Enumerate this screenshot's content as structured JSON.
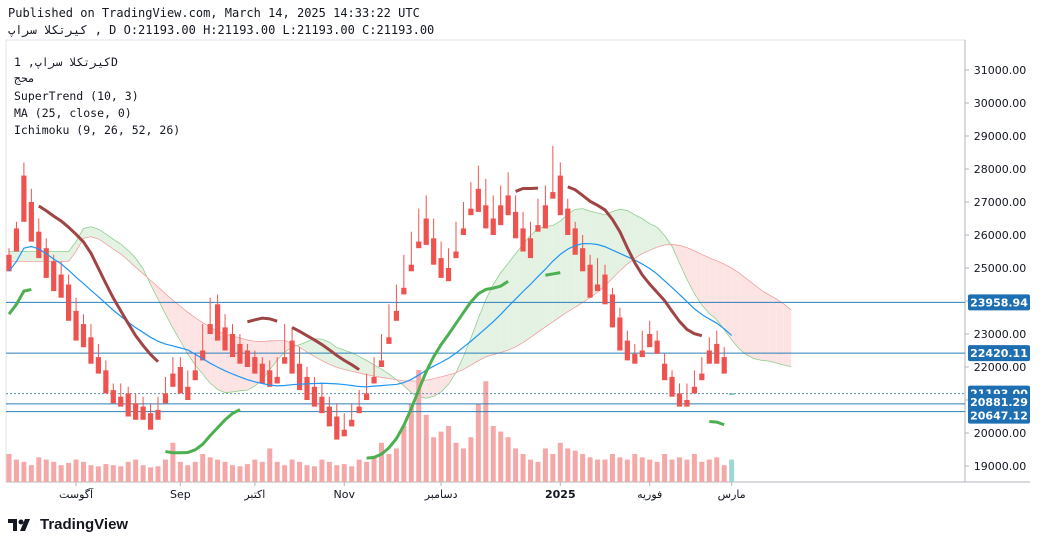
{
  "header": {
    "published": "Published on TradingView.com, March 14, 2025 14:33:22 UTC",
    "ohlc": "کیرتکلا سراپ , D O:21193.00 H:21193.00 L:21193.00 C:21193.00"
  },
  "legend": {
    "symbol": "کیرتکلا سراپ, 1D",
    "exchange": "محج",
    "ind1": "SuperTrend (10, 3)",
    "ind2": "MA (25, close, 0)",
    "ind3": "Ichimoku (9, 26, 52, 26)"
  },
  "brand": {
    "name": "TradingView"
  },
  "colors": {
    "up": "#26a69a",
    "down": "#ef5350",
    "supertrend_up": "#4caf50",
    "supertrend_down": "#a04545",
    "ma": "#2196f3",
    "cloud_bull": "#e3f2e3",
    "cloud_bear": "#fde4e4",
    "hline": "#2a7fb8",
    "label_bg": "#1e6fb2"
  },
  "chart_data": {
    "type": "candlestick",
    "y_axis": {
      "min": 18500,
      "max": 31500,
      "ticks": [
        19000,
        20000,
        21000,
        22000,
        23000,
        24000,
        25000,
        26000,
        27000,
        28000,
        29000,
        30000,
        31000
      ]
    },
    "x_ticks": [
      {
        "label": "آگوست",
        "index": 9
      },
      {
        "label": "Sep",
        "index": 23
      },
      {
        "label": "اکتبر",
        "index": 33
      },
      {
        "label": "Nov",
        "index": 45
      },
      {
        "label": "دسامبر",
        "index": 58
      },
      {
        "label": "2025",
        "index": 74
      },
      {
        "label": "فوریه",
        "index": 86
      },
      {
        "label": "مارس",
        "index": 97
      }
    ],
    "price_labels": [
      {
        "value": "23958.94",
        "y": 23958.94
      },
      {
        "value": "22420.11",
        "y": 22420.11
      },
      {
        "value": "21193.00",
        "y": 21193
      },
      {
        "value": "20881.29",
        "y": 20881.29
      },
      {
        "value": "20647.12",
        "y": 20647.12
      }
    ],
    "candles": [
      [
        25400,
        25600,
        25000,
        24900
      ],
      [
        26200,
        26400,
        25800,
        25500
      ],
      [
        27800,
        28200,
        27000,
        26400
      ],
      [
        27000,
        27400,
        26200,
        25800
      ],
      [
        26100,
        26500,
        25500,
        25300
      ],
      [
        25600,
        25900,
        24900,
        24700
      ],
      [
        25200,
        25400,
        24500,
        24300
      ],
      [
        24800,
        25200,
        24300,
        24100
      ],
      [
        24500,
        24800,
        23600,
        23400
      ],
      [
        23700,
        24100,
        23200,
        22800
      ],
      [
        23300,
        23600,
        22700,
        22600
      ],
      [
        22900,
        23300,
        22400,
        22100
      ],
      [
        22300,
        22700,
        21900,
        21800
      ],
      [
        21900,
        22200,
        21400,
        21200
      ],
      [
        21300,
        21500,
        21000,
        20900
      ],
      [
        21100,
        21500,
        20900,
        20800
      ],
      [
        21200,
        21400,
        20700,
        20500
      ],
      [
        20900,
        21200,
        20600,
        20400
      ],
      [
        20800,
        21100,
        20500,
        20400
      ],
      [
        20600,
        20900,
        20200,
        20100
      ],
      [
        20700,
        21100,
        20500,
        20400
      ],
      [
        21200,
        21700,
        21000,
        20900
      ],
      [
        21800,
        22300,
        21600,
        21400
      ],
      [
        22000,
        22300,
        21400,
        21200
      ],
      [
        21400,
        21900,
        21200,
        21000
      ],
      [
        21900,
        22400,
        21800,
        21600
      ],
      [
        22500,
        23300,
        22400,
        22200
      ],
      [
        23300,
        24100,
        23100,
        23000
      ],
      [
        23900,
        24200,
        23000,
        22800
      ],
      [
        23200,
        23600,
        22700,
        22500
      ],
      [
        23000,
        23300,
        22500,
        22300
      ],
      [
        22700,
        23000,
        22300,
        22100
      ],
      [
        22500,
        22700,
        22200,
        22000
      ],
      [
        22300,
        22500,
        21900,
        21800
      ],
      [
        22100,
        22300,
        21600,
        21500
      ],
      [
        21900,
        22200,
        21600,
        21400
      ],
      [
        21700,
        22300,
        21600,
        21500
      ],
      [
        22300,
        23300,
        22200,
        22100
      ],
      [
        22800,
        23200,
        22000,
        21800
      ],
      [
        22100,
        22600,
        21500,
        21300
      ],
      [
        21700,
        22000,
        21100,
        21000
      ],
      [
        21400,
        21700,
        20900,
        20800
      ],
      [
        21100,
        21500,
        20700,
        20600
      ],
      [
        20800,
        21100,
        20300,
        20200
      ],
      [
        20500,
        20900,
        19900,
        19800
      ],
      [
        20100,
        20600,
        20000,
        19900
      ],
      [
        20400,
        20900,
        20300,
        20200
      ],
      [
        20800,
        21300,
        20700,
        20600
      ],
      [
        21200,
        21800,
        21100,
        21000
      ],
      [
        21700,
        22300,
        21600,
        21500
      ],
      [
        22200,
        23000,
        22100,
        22000
      ],
      [
        22900,
        23900,
        22800,
        22700
      ],
      [
        23700,
        24500,
        23500,
        23400
      ],
      [
        24400,
        25400,
        24300,
        24200
      ],
      [
        25100,
        26100,
        25000,
        24900
      ],
      [
        25800,
        26800,
        25700,
        25600
      ],
      [
        26500,
        27200,
        25900,
        25700
      ],
      [
        25900,
        26500,
        25300,
        25100
      ],
      [
        25300,
        25800,
        24900,
        24700
      ],
      [
        25000,
        25600,
        24800,
        24600
      ],
      [
        25500,
        26400,
        25400,
        25300
      ],
      [
        26200,
        27000,
        26100,
        26000
      ],
      [
        26800,
        27600,
        26700,
        26600
      ],
      [
        27400,
        28100,
        26800,
        26700
      ],
      [
        26900,
        27700,
        26300,
        26200
      ],
      [
        26500,
        27200,
        26200,
        26000
      ],
      [
        26900,
        27500,
        26500,
        26300
      ],
      [
        27200,
        27900,
        26800,
        26600
      ],
      [
        26700,
        27200,
        26100,
        25900
      ],
      [
        26200,
        26700,
        25700,
        25500
      ],
      [
        25900,
        26400,
        25500,
        25300
      ],
      [
        26300,
        27100,
        26200,
        26100
      ],
      [
        26900,
        27500,
        26400,
        26200
      ],
      [
        27300,
        28700,
        27200,
        27100
      ],
      [
        27800,
        28200,
        26900,
        26600
      ],
      [
        26800,
        27100,
        26200,
        26000
      ],
      [
        26200,
        26400,
        25600,
        25400
      ],
      [
        25600,
        26000,
        25100,
        24900
      ],
      [
        25100,
        25400,
        24300,
        24100
      ],
      [
        24500,
        25300,
        24400,
        24300
      ],
      [
        24800,
        25100,
        24100,
        23900
      ],
      [
        24200,
        24400,
        23400,
        23200
      ],
      [
        23500,
        23800,
        22700,
        22500
      ],
      [
        22800,
        23100,
        22300,
        22200
      ],
      [
        22400,
        22700,
        22200,
        22100
      ],
      [
        22500,
        23100,
        22400,
        22300
      ],
      [
        23000,
        23400,
        22700,
        22600
      ],
      [
        22800,
        23100,
        22500,
        22400
      ],
      [
        22100,
        22400,
        21700,
        21600
      ],
      [
        21700,
        21900,
        21300,
        21100
      ],
      [
        21200,
        21500,
        20900,
        20800
      ],
      [
        21000,
        21500,
        20900,
        20800
      ],
      [
        21400,
        21900,
        21300,
        21200
      ],
      [
        21800,
        22300,
        21700,
        21600
      ],
      [
        22500,
        22900,
        22300,
        22100
      ],
      [
        22700,
        23100,
        22200,
        22100
      ],
      [
        22300,
        22600,
        21900,
        21800
      ],
      [
        21193,
        21193,
        21193,
        21193
      ]
    ],
    "volumes": [
      0.25,
      0.2,
      0.18,
      0.15,
      0.22,
      0.2,
      0.18,
      0.15,
      0.17,
      0.2,
      0.18,
      0.15,
      0.14,
      0.16,
      0.15,
      0.14,
      0.18,
      0.2,
      0.15,
      0.13,
      0.14,
      0.2,
      0.35,
      0.18,
      0.15,
      0.18,
      0.25,
      0.22,
      0.2,
      0.18,
      0.15,
      0.14,
      0.16,
      0.2,
      0.18,
      0.3,
      0.18,
      0.15,
      0.2,
      0.18,
      0.15,
      0.14,
      0.2,
      0.18,
      0.15,
      0.16,
      0.14,
      0.2,
      0.18,
      0.22,
      0.35,
      0.25,
      0.3,
      0.5,
      0.7,
      1.0,
      0.6,
      0.4,
      0.45,
      0.5,
      0.35,
      0.3,
      0.4,
      0.7,
      0.9,
      0.5,
      0.45,
      0.4,
      0.3,
      0.25,
      0.2,
      0.18,
      0.3,
      0.25,
      0.35,
      0.3,
      0.28,
      0.25,
      0.22,
      0.2,
      0.2,
      0.25,
      0.22,
      0.2,
      0.25,
      0.22,
      0.2,
      0.18,
      0.25,
      0.2,
      0.22,
      0.2,
      0.25,
      0.18,
      0.2,
      0.22,
      0.15,
      0.2
    ]
  }
}
